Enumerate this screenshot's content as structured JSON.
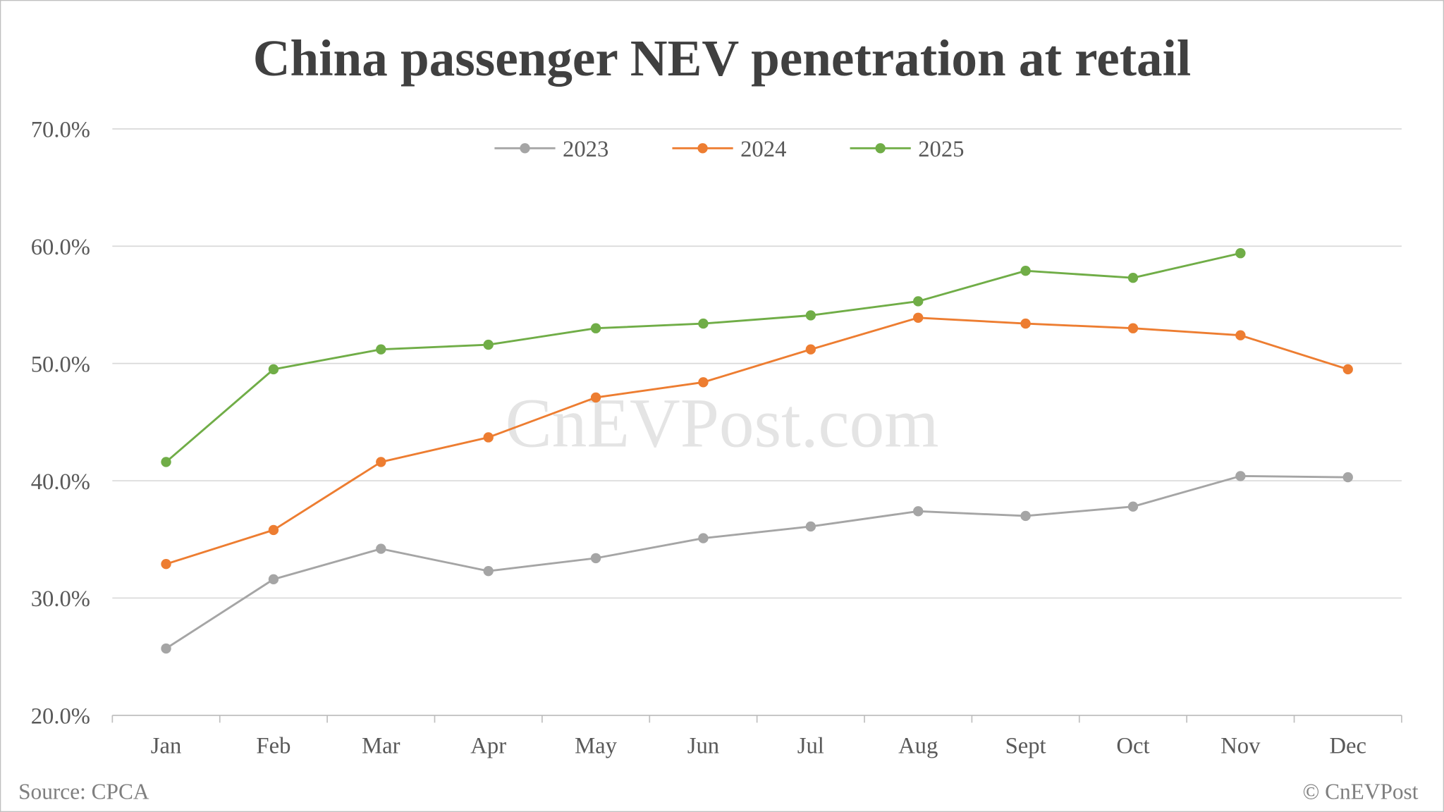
{
  "chart_data": {
    "type": "line",
    "title": "China passenger NEV penetration at retail",
    "xlabel": "",
    "ylabel": "",
    "categories": [
      "Jan",
      "Feb",
      "Mar",
      "Apr",
      "May",
      "Jun",
      "Jul",
      "Aug",
      "Sept",
      "Oct",
      "Nov",
      "Dec"
    ],
    "ylim": [
      20,
      70
    ],
    "yticks": [
      "20.0%",
      "30.0%",
      "40.0%",
      "50.0%",
      "60.0%",
      "70.0%"
    ],
    "grid": true,
    "legend_position": "top-center",
    "series": [
      {
        "name": "2023",
        "color": "#a5a5a5",
        "values": [
          25.7,
          31.6,
          34.2,
          32.3,
          33.4,
          35.1,
          36.1,
          37.4,
          37.0,
          37.8,
          40.4,
          40.3
        ]
      },
      {
        "name": "2024",
        "color": "#ed7d31",
        "values": [
          32.9,
          35.8,
          41.6,
          43.7,
          47.1,
          48.4,
          51.2,
          53.9,
          53.4,
          53.0,
          52.4,
          49.5
        ]
      },
      {
        "name": "2025",
        "color": "#70ad47",
        "values": [
          41.6,
          49.5,
          51.2,
          51.6,
          53.0,
          53.4,
          54.1,
          55.3,
          57.9,
          57.3,
          59.4,
          null
        ]
      }
    ],
    "watermark": "CnEVPost.com",
    "source": "Source: CPCA",
    "credit": "© CnEVPost"
  }
}
